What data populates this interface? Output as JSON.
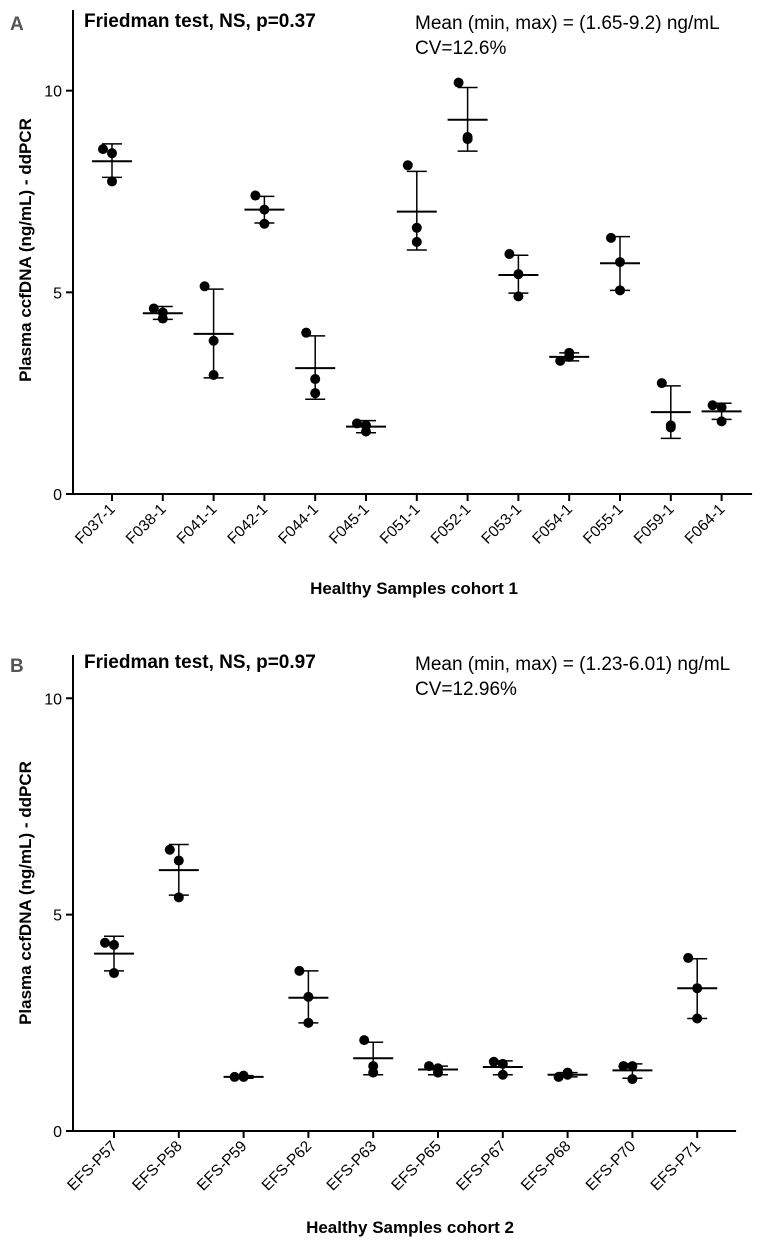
{
  "chart_data": [
    {
      "type": "scatter",
      "panel_label": "A",
      "stat_test": "Friedman test, NS, p=0.37",
      "summary_line1": "Mean (min, max) = (1.65-9.2) ng/mL",
      "summary_line2": "CV=12.6%",
      "ylabel": "Plasma ccfDNA (ng/mL) - ddPCR",
      "xlabel": "Healthy Samples cohort 1",
      "ylim": [
        0,
        12
      ],
      "yticks": [
        0,
        5,
        10
      ],
      "grid": false,
      "categories": [
        "F037-1",
        "F038-1",
        "F041-1",
        "F042-1",
        "F044-1",
        "F045-1",
        "F051-1",
        "F052-1",
        "F053-1",
        "F054-1",
        "F055-1",
        "F059-1",
        "F064-1"
      ],
      "points": [
        [
          8.55,
          8.45,
          7.75
        ],
        [
          4.6,
          4.35,
          4.5
        ],
        [
          5.15,
          3.8,
          2.95
        ],
        [
          7.4,
          7.05,
          6.7
        ],
        [
          4.0,
          2.85,
          2.5
        ],
        [
          1.75,
          1.55,
          1.7
        ],
        [
          8.15,
          6.6,
          6.25
        ],
        [
          10.2,
          8.8,
          8.85
        ],
        [
          5.95,
          4.9,
          5.45
        ],
        [
          3.3,
          3.5,
          3.4
        ],
        [
          6.35,
          5.75,
          5.05
        ],
        [
          2.75,
          1.65,
          1.7
        ],
        [
          2.2,
          1.8,
          2.15
        ]
      ],
      "mean": [
        8.25,
        4.48,
        3.97,
        7.05,
        3.12,
        1.67,
        7.0,
        9.28,
        5.43,
        3.4,
        5.72,
        2.03,
        2.05
      ],
      "err_low": [
        7.85,
        4.33,
        2.88,
        6.72,
        2.35,
        1.52,
        6.05,
        8.5,
        4.98,
        3.3,
        5.05,
        1.38,
        1.85
      ],
      "err_high": [
        8.68,
        4.65,
        5.08,
        7.38,
        3.92,
        1.82,
        8.0,
        10.08,
        5.92,
        3.5,
        6.38,
        2.68,
        2.25
      ]
    },
    {
      "type": "scatter",
      "panel_label": "B",
      "stat_test": "Friedman test, NS, p=0.97",
      "summary_line1": "Mean (min, max) = (1.23-6.01) ng/mL",
      "summary_line2": "CV=12.96%",
      "ylabel": "Plasma ccfDNA (ng/mL) - ddPCR",
      "xlabel": "Healthy Samples cohort 2",
      "ylim": [
        0,
        11
      ],
      "yticks": [
        0,
        5,
        10
      ],
      "grid": false,
      "categories": [
        "EFS-P57",
        "EFS-P58",
        "EFS-P59",
        "EFS-P62",
        "EFS-P63",
        "EFS-P65",
        "EFS-P67",
        "EFS-P68",
        "EFS-P70",
        "EFS-P71"
      ],
      "points": [
        [
          4.35,
          4.3,
          3.65
        ],
        [
          6.5,
          6.25,
          5.4
        ],
        [
          1.25,
          1.25,
          1.28
        ],
        [
          3.7,
          3.1,
          2.5
        ],
        [
          2.1,
          1.35,
          1.5
        ],
        [
          1.5,
          1.35,
          1.45
        ],
        [
          1.6,
          1.3,
          1.55
        ],
        [
          1.25,
          1.35,
          1.3
        ],
        [
          1.5,
          1.2,
          1.5
        ],
        [
          4.0,
          3.3,
          2.6
        ]
      ],
      "mean": [
        4.1,
        6.03,
        1.25,
        3.08,
        1.68,
        1.42,
        1.48,
        1.3,
        1.4,
        3.3
      ],
      "err_low": [
        3.7,
        5.45,
        1.22,
        2.5,
        1.3,
        1.3,
        1.3,
        1.25,
        1.22,
        2.6
      ],
      "err_high": [
        4.5,
        6.62,
        1.28,
        3.7,
        2.05,
        1.5,
        1.62,
        1.35,
        1.55,
        3.98
      ]
    }
  ]
}
